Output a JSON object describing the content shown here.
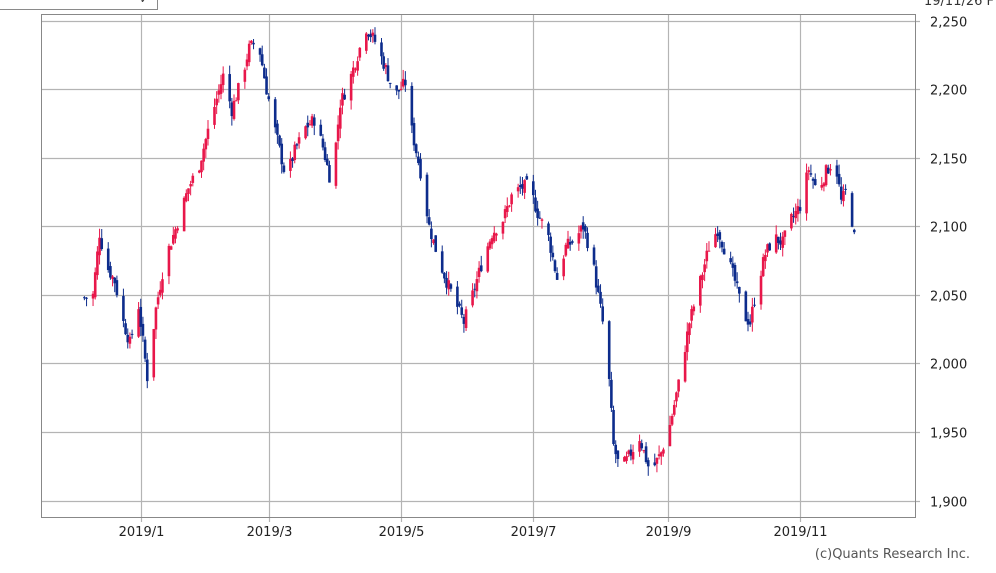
{
  "header": {
    "period_chevron": "✓",
    "date_readout": "19/11/26 F"
  },
  "credit": "(c)Quants Research Inc.",
  "colors": {
    "up": "#e8174a",
    "down": "#0d2c8c",
    "grid": "#b4b4b4",
    "frame": "#888888"
  },
  "chart_data": {
    "type": "candlestick",
    "x_tick_labels": [
      "2019/1",
      "2019/3",
      "2019/5",
      "2019/7",
      "2019/9",
      "2019/11"
    ],
    "x_tick_dates": [
      "2019-01-01",
      "2019-03-01",
      "2019-05-01",
      "2019-07-01",
      "2019-09-01",
      "2019-11-01"
    ],
    "xlim": [
      "2018-11-16",
      "2019-12-24"
    ],
    "y_tick_labels": [
      "2,250",
      "2,200",
      "2,150",
      "2,100",
      "2,050",
      "2,000",
      "1,950",
      "1,900"
    ],
    "y_ticks": [
      2250,
      2200,
      2150,
      2100,
      2050,
      2000,
      1950,
      1900
    ],
    "ylim": [
      1888,
      2255
    ],
    "grid": true,
    "series_close_anchors": [
      [
        "2018-12-06",
        2048
      ],
      [
        "2018-12-10",
        2050
      ],
      [
        "2018-12-13",
        2095
      ],
      [
        "2018-12-16",
        2072
      ],
      [
        "2018-12-20",
        2060
      ],
      [
        "2018-12-24",
        2030
      ],
      [
        "2018-12-27",
        2015
      ],
      [
        "2018-12-31",
        2042
      ],
      [
        "2019-01-04",
        1990
      ],
      [
        "2019-01-08",
        2040
      ],
      [
        "2019-01-12",
        2075
      ],
      [
        "2019-01-17",
        2098
      ],
      [
        "2019-01-23",
        2128
      ],
      [
        "2019-01-28",
        2145
      ],
      [
        "2019-02-03",
        2182
      ],
      [
        "2019-02-08",
        2210
      ],
      [
        "2019-02-12",
        2185
      ],
      [
        "2019-02-16",
        2205
      ],
      [
        "2019-02-20",
        2230
      ],
      [
        "2019-02-24",
        2236
      ],
      [
        "2019-02-28",
        2200
      ],
      [
        "2019-03-04",
        2170
      ],
      [
        "2019-03-09",
        2135
      ],
      [
        "2019-03-13",
        2155
      ],
      [
        "2019-03-18",
        2172
      ],
      [
        "2019-03-22",
        2178
      ],
      [
        "2019-03-26",
        2158
      ],
      [
        "2019-03-30",
        2130
      ],
      [
        "2019-04-03",
        2190
      ],
      [
        "2019-04-07",
        2205
      ],
      [
        "2019-04-11",
        2225
      ],
      [
        "2019-04-15",
        2245
      ],
      [
        "2019-04-19",
        2235
      ],
      [
        "2019-04-24",
        2215
      ],
      [
        "2019-04-28",
        2195
      ],
      [
        "2019-05-03",
        2205
      ],
      [
        "2019-05-06",
        2170
      ],
      [
        "2019-05-10",
        2140
      ],
      [
        "2019-05-14",
        2100
      ],
      [
        "2019-05-18",
        2078
      ],
      [
        "2019-05-22",
        2060
      ],
      [
        "2019-05-26",
        2045
      ],
      [
        "2019-05-30",
        2030
      ],
      [
        "2019-06-03",
        2050
      ],
      [
        "2019-06-07",
        2072
      ],
      [
        "2019-06-12",
        2095
      ],
      [
        "2019-06-17",
        2105
      ],
      [
        "2019-06-21",
        2122
      ],
      [
        "2019-06-25",
        2128
      ],
      [
        "2019-06-29",
        2130
      ],
      [
        "2019-07-03",
        2110
      ],
      [
        "2019-07-08",
        2092
      ],
      [
        "2019-07-12",
        2062
      ],
      [
        "2019-07-16",
        2085
      ],
      [
        "2019-07-20",
        2090
      ],
      [
        "2019-07-24",
        2100
      ],
      [
        "2019-07-28",
        2078
      ],
      [
        "2019-08-01",
        2040
      ],
      [
        "2019-08-04",
        2010
      ],
      [
        "2019-08-07",
        1940
      ],
      [
        "2019-08-10",
        1922
      ],
      [
        "2019-08-14",
        1932
      ],
      [
        "2019-08-19",
        1946
      ],
      [
        "2019-08-24",
        1920
      ],
      [
        "2019-08-29",
        1935
      ],
      [
        "2019-09-02",
        1955
      ],
      [
        "2019-09-06",
        1985
      ],
      [
        "2019-09-11",
        2030
      ],
      [
        "2019-09-16",
        2060
      ],
      [
        "2019-09-20",
        2085
      ],
      [
        "2019-09-24",
        2098
      ],
      [
        "2019-09-28",
        2080
      ],
      [
        "2019-10-02",
        2060
      ],
      [
        "2019-10-06",
        2035
      ],
      [
        "2019-10-09",
        2030
      ],
      [
        "2019-10-12",
        2055
      ],
      [
        "2019-10-16",
        2080
      ],
      [
        "2019-10-20",
        2092
      ],
      [
        "2019-10-24",
        2088
      ],
      [
        "2019-10-28",
        2105
      ],
      [
        "2019-11-01",
        2115
      ],
      [
        "2019-11-05",
        2142
      ],
      [
        "2019-11-09",
        2125
      ],
      [
        "2019-11-13",
        2140
      ],
      [
        "2019-11-17",
        2150
      ],
      [
        "2019-11-20",
        2118
      ],
      [
        "2019-11-23",
        2128
      ],
      [
        "2019-11-26",
        2092
      ]
    ]
  }
}
